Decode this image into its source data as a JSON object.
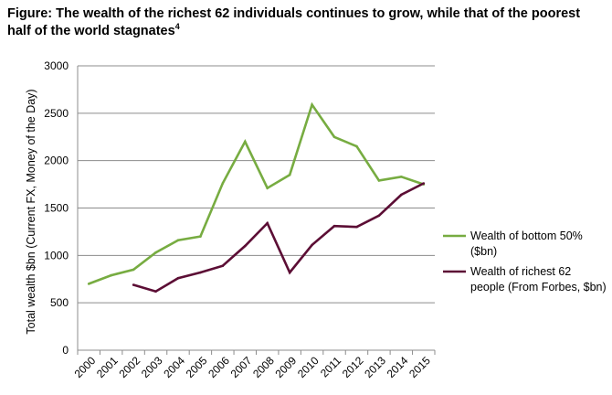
{
  "title": {
    "text": "Figure: The wealth of the richest 62 individuals continues to grow, while that of the poorest half of the world stagnates",
    "footnote": "4"
  },
  "chart_data": {
    "type": "line",
    "title": "Figure: The wealth of the richest 62 individuals continues to grow, while that of the poorest half of the world stagnates",
    "ylabel": "Total wealth $bn (Current FX, Money of the Day)",
    "xlabel": "",
    "ylim": [
      0,
      3000
    ],
    "yticks": [
      0,
      500,
      1000,
      1500,
      2000,
      2500,
      3000
    ],
    "categories": [
      "2000",
      "2001",
      "2002",
      "2003",
      "2004",
      "2005",
      "2006",
      "2007",
      "2008",
      "2009",
      "2010",
      "2011",
      "2012",
      "2013",
      "2014",
      "2015"
    ],
    "grid": "horizontal",
    "legend_position": "right",
    "series": [
      {
        "name": "Wealth of bottom 50% ($bn)",
        "legend_lines": [
          "Wealth of bottom 50%",
          "($bn)"
        ],
        "color": "#77ac41",
        "values": [
          700,
          790,
          850,
          1030,
          1160,
          1200,
          1760,
          2200,
          1710,
          1850,
          2590,
          2250,
          2150,
          1790,
          1830,
          1750
        ]
      },
      {
        "name": "Wealth of richest 62 people (From Forbes, $bn)",
        "legend_lines": [
          "Wealth of richest 62",
          "people (From Forbes, $bn)"
        ],
        "color": "#5c0e35",
        "values": [
          null,
          null,
          690,
          620,
          760,
          820,
          890,
          1100,
          1340,
          820,
          1110,
          1310,
          1300,
          1420,
          1640,
          1760
        ]
      }
    ]
  }
}
